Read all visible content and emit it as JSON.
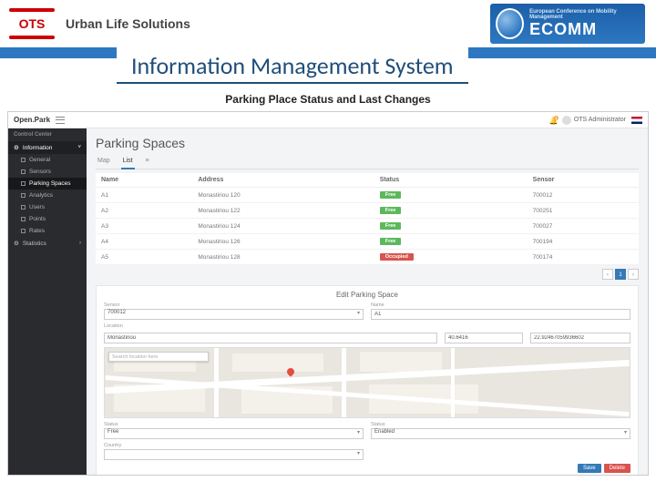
{
  "slide": {
    "companyTitle": "Urban Life Solutions",
    "mainTitle": "Information Management System",
    "caption": "Parking Place Status and Last Changes",
    "otsLogoText": "OTS",
    "ecomm": {
      "label": "ECOMM",
      "sub": "European Conference on Mobility Management"
    }
  },
  "colors": {
    "headerBar": "#2d77c1",
    "titleText": "#1f4e79",
    "sidebarBg": "#2a2b2e",
    "badgeFree": "#5cb85c",
    "badgeOccupied": "#d9534f",
    "primaryBtn": "#337ab7",
    "dangerBtn": "#d9534f",
    "successBtn": "#5cb85c"
  },
  "app": {
    "brand": "Open.Park",
    "notificationCount": "1",
    "userName": "OTS Administrator",
    "sidebar": {
      "header": "Control Center",
      "sections": [
        {
          "label": "Information",
          "icon": "gear",
          "expandable": true,
          "expanded": true
        },
        {
          "label": "General",
          "icon": "sq",
          "sub": true
        },
        {
          "label": "Sensors",
          "icon": "sq",
          "sub": true
        },
        {
          "label": "Parking Spaces",
          "icon": "sq",
          "sub": true,
          "active": true
        },
        {
          "label": "Analytics",
          "icon": "sq",
          "sub": true
        },
        {
          "label": "Users",
          "icon": "sq",
          "sub": true
        },
        {
          "label": "Points",
          "icon": "sq",
          "sub": true
        },
        {
          "label": "Rates",
          "icon": "sq",
          "sub": true
        },
        {
          "label": "Statistics",
          "icon": "gear",
          "expandable": true
        }
      ]
    },
    "page": {
      "title": "Parking Spaces",
      "tabs": [
        "Map",
        "List",
        ""
      ],
      "activeTab": 1,
      "columns": [
        "Name",
        "Address",
        "Status",
        "Sensor"
      ],
      "rows": [
        {
          "name": "A1",
          "address": "Monastiriou 120",
          "status": "Free",
          "statusColor": "#5cb85c",
          "sensor": "700012"
        },
        {
          "name": "A2",
          "address": "Monastiriou 122",
          "status": "Free",
          "statusColor": "#5cb85c",
          "sensor": "700251"
        },
        {
          "name": "A3",
          "address": "Monastiriou 124",
          "status": "Free",
          "statusColor": "#5cb85c",
          "sensor": "700027"
        },
        {
          "name": "A4",
          "address": "Monastiriou 126",
          "status": "Free",
          "statusColor": "#5cb85c",
          "sensor": "700194"
        },
        {
          "name": "A5",
          "address": "Monastiriou 128",
          "status": "Occupied",
          "statusColor": "#d9534f",
          "sensor": "700174"
        }
      ],
      "pager": {
        "prev": "‹",
        "pages": [
          "1"
        ],
        "next": "›",
        "current": 1
      }
    },
    "editPanel": {
      "title": "Edit Parking Space",
      "sensorLabel": "Sensor",
      "sensorValue": "700012",
      "nameLabel": "Name",
      "nameValue": "A1",
      "locationLabel": "Location",
      "street": "Monastiriou",
      "number": "120",
      "latLabel": "E",
      "lat": "40.6416",
      "lonLabel": "",
      "lon": "22.92467059936602",
      "mapSearchPlaceholder": "Search location here",
      "status1Label": "Status",
      "status1Value": "Free",
      "status2Label": "Status",
      "status2Value": "Enabled",
      "countryLabel": "Country",
      "countryValue": "",
      "saveLabel": "Save",
      "deleteLabel": "Delete"
    }
  }
}
